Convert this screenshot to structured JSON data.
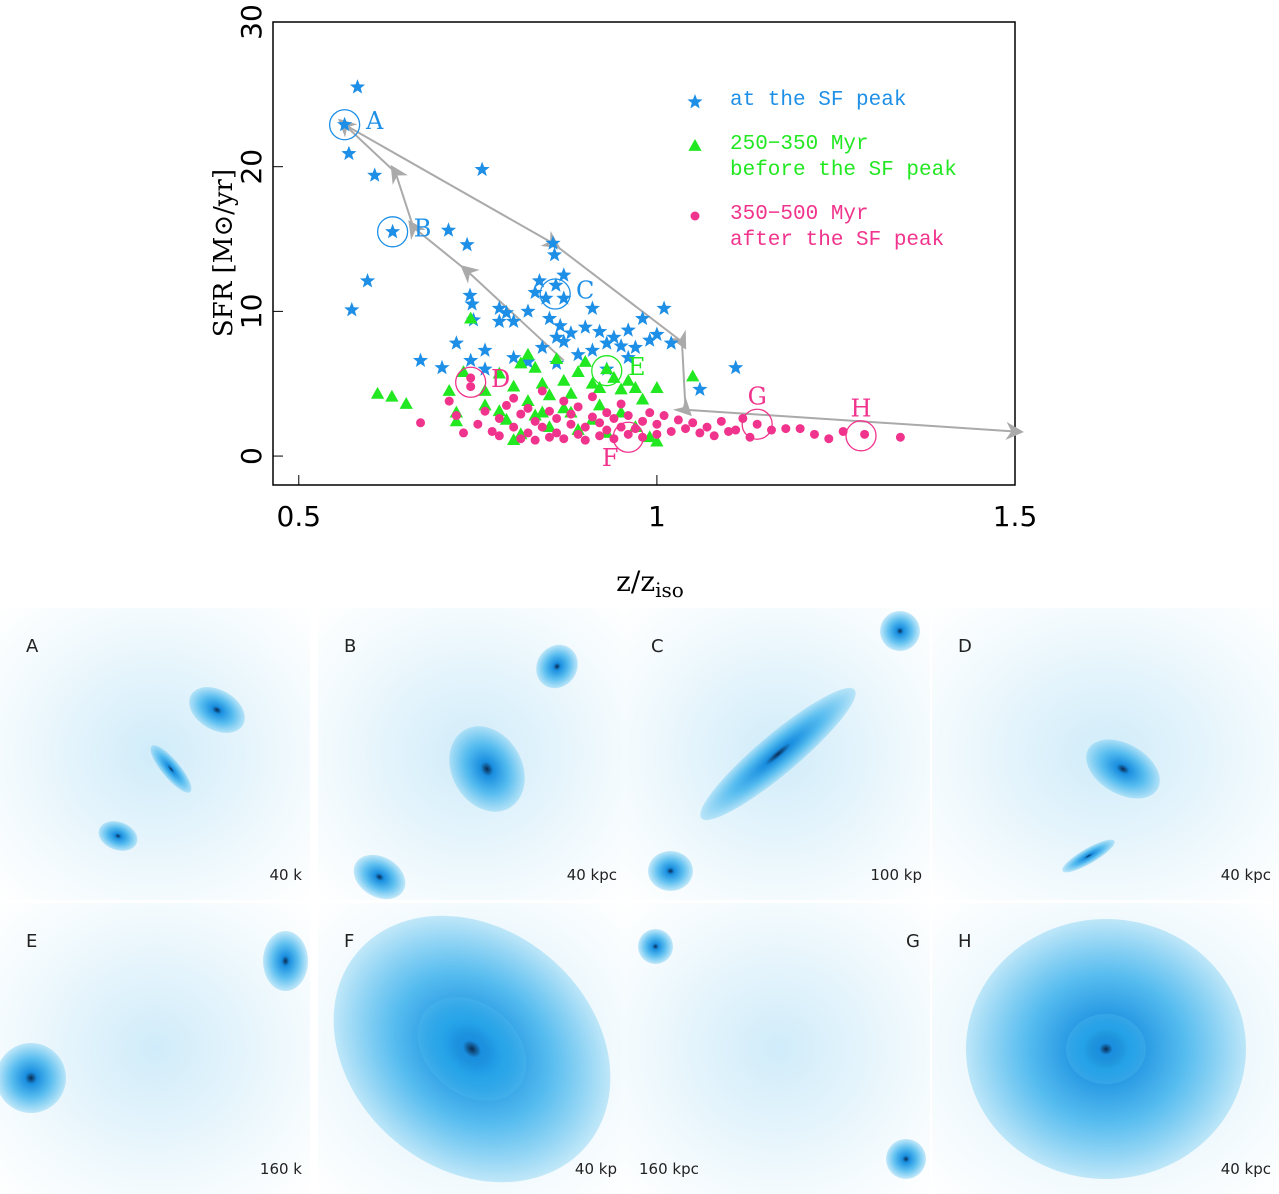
{
  "chart_data": {
    "type": "scatter",
    "xlabel": {
      "text": "z/z",
      "sub": "iso"
    },
    "ylabel": "SFR [M⊙/yr]",
    "xlim": [
      0.464,
      1.5
    ],
    "ylim": [
      -2,
      30
    ],
    "xticks": [
      0.5,
      1,
      1.5
    ],
    "yticks": [
      0,
      10,
      20,
      30
    ],
    "legend": "upper right",
    "series": [
      {
        "name": "at the SF peak",
        "color": "#1e8fe6",
        "marker": "star",
        "x": [
          0.582,
          0.564,
          0.57,
          0.606,
          0.756,
          0.631,
          0.709,
          0.735,
          0.855,
          0.857,
          0.596,
          0.574,
          0.739,
          0.742,
          0.744,
          0.859,
          0.836,
          0.845,
          0.87,
          0.91,
          0.82,
          0.79,
          0.8,
          0.78,
          0.85,
          0.865,
          0.88,
          0.9,
          0.92,
          0.94,
          0.96,
          0.98,
          1.01,
          0.99,
          0.97,
          0.95,
          0.93,
          0.91,
          0.89,
          0.87,
          0.86,
          0.84,
          0.82,
          0.8,
          0.76,
          0.72,
          0.7,
          0.67,
          0.74,
          0.76,
          0.86,
          0.93,
          0.96,
          1.06,
          1.11,
          1.02,
          1.0,
          0.78,
          0.83,
          0.87
        ],
        "values": [
          25.5,
          22.9,
          20.9,
          19.4,
          19.8,
          15.5,
          15.6,
          14.6,
          14.7,
          13.9,
          12.1,
          10.1,
          11.1,
          10.5,
          9.4,
          11.8,
          12.1,
          10.9,
          10.9,
          10.2,
          10.0,
          9.9,
          9.3,
          9.3,
          9.5,
          9.0,
          8.5,
          8.9,
          8.6,
          8.2,
          8.7,
          9.5,
          10.2,
          8.0,
          7.5,
          7.6,
          7.8,
          7.3,
          7.0,
          7.9,
          8.2,
          7.5,
          6.5,
          6.8,
          7.3,
          7.8,
          6.1,
          6.6,
          6.6,
          6.0,
          6.4,
          6.0,
          6.8,
          4.6,
          6.1,
          7.8,
          8.4,
          10.2,
          11.3,
          12.5
        ]
      },
      {
        "name": "250−350 Myr\n before the SF peak",
        "color": "#22e822",
        "marker": "triangle",
        "x": [
          0.61,
          0.63,
          0.65,
          0.71,
          0.72,
          0.72,
          0.73,
          0.74,
          0.76,
          0.78,
          0.78,
          0.8,
          0.81,
          0.82,
          0.83,
          0.84,
          0.85,
          0.86,
          0.87,
          0.88,
          0.89,
          0.9,
          0.91,
          0.92,
          0.93,
          0.94,
          0.95,
          0.96,
          0.97,
          0.98,
          1.0,
          1.05,
          0.79,
          0.81,
          0.83,
          0.85,
          0.87,
          0.89,
          0.91,
          0.93,
          0.95,
          0.97,
          0.99,
          1.0,
          0.8,
          0.76,
          0.82,
          0.84,
          0.88,
          0.92
        ],
        "values": [
          4.3,
          4.1,
          3.6,
          4.5,
          3.0,
          2.4,
          5.8,
          9.5,
          4.5,
          5.7,
          3.1,
          4.8,
          6.4,
          7.0,
          6.1,
          5.0,
          4.2,
          6.7,
          5.2,
          4.3,
          5.8,
          6.5,
          5.0,
          4.7,
          6.0,
          5.4,
          4.6,
          5.2,
          4.7,
          3.9,
          4.7,
          5.5,
          2.5,
          1.5,
          2.8,
          2.0,
          3.3,
          1.8,
          2.5,
          1.6,
          3.0,
          2.0,
          1.3,
          1.0,
          1.1,
          3.5,
          3.8,
          3.0,
          3.0,
          3.5
        ]
      },
      {
        "name": "350−500 Myr\n after the SF peak",
        "color": "#f0338c",
        "marker": "circle",
        "x": [
          0.67,
          0.71,
          0.72,
          0.73,
          0.74,
          0.74,
          0.75,
          0.76,
          0.77,
          0.78,
          0.78,
          0.79,
          0.8,
          0.8,
          0.81,
          0.81,
          0.82,
          0.82,
          0.83,
          0.83,
          0.84,
          0.84,
          0.85,
          0.85,
          0.86,
          0.86,
          0.87,
          0.87,
          0.88,
          0.88,
          0.89,
          0.89,
          0.9,
          0.9,
          0.91,
          0.91,
          0.92,
          0.92,
          0.93,
          0.93,
          0.94,
          0.94,
          0.95,
          0.95,
          0.96,
          0.96,
          0.97,
          0.98,
          0.98,
          0.99,
          1.0,
          1.0,
          1.01,
          1.02,
          1.03,
          1.04,
          1.05,
          1.06,
          1.07,
          1.08,
          1.09,
          1.1,
          1.11,
          1.12,
          1.13,
          1.14,
          1.16,
          1.18,
          1.2,
          1.22,
          1.24,
          1.26,
          1.29,
          1.34
        ],
        "values": [
          2.3,
          3.8,
          2.8,
          1.6,
          5.4,
          4.8,
          2.2,
          3.1,
          1.7,
          2.6,
          1.4,
          3.5,
          2.0,
          4.0,
          1.2,
          2.9,
          1.6,
          3.3,
          2.4,
          1.1,
          4.5,
          2.0,
          1.3,
          3.1,
          2.6,
          1.6,
          3.8,
          1.2,
          2.2,
          2.9,
          1.5,
          3.4,
          2.0,
          1.1,
          2.7,
          4.1,
          1.4,
          2.3,
          3.0,
          1.8,
          1.2,
          2.6,
          2.0,
          3.6,
          1.5,
          2.8,
          1.9,
          2.4,
          1.3,
          3.0,
          2.2,
          1.5,
          2.8,
          1.7,
          2.5,
          1.9,
          2.3,
          1.6,
          2.0,
          1.4,
          2.4,
          1.7,
          1.8,
          2.6,
          1.3,
          2.2,
          1.8,
          1.9,
          1.9,
          1.5,
          1.2,
          1.7,
          1.5,
          1.3
        ]
      }
    ],
    "tracks": [
      {
        "x": [
          0.564,
          0.855,
          1.035,
          1.04,
          1.5
        ],
        "y": [
          22.9,
          14.7,
          7.9,
          3.2,
          1.7
        ]
      },
      {
        "x": [
          0.87,
          0.735,
          0.66,
          0.635,
          0.564
        ],
        "y": [
          6.6,
          12.8,
          15.8,
          19.6,
          22.9
        ]
      }
    ],
    "annotations": [
      {
        "text": "A",
        "x": 0.564,
        "y": 22.9,
        "color": "#1e8fe6",
        "side": "right"
      },
      {
        "text": "B",
        "x": 0.631,
        "y": 15.5,
        "color": "#1e8fe6",
        "side": "right"
      },
      {
        "text": "C",
        "x": 0.858,
        "y": 11.2,
        "color": "#1e8fe6",
        "side": "right"
      },
      {
        "text": "D",
        "x": 0.74,
        "y": 5.1,
        "color": "#f0338c",
        "side": "right"
      },
      {
        "text": "E",
        "x": 0.93,
        "y": 5.9,
        "color": "#22e822",
        "side": "right"
      },
      {
        "text": "F",
        "x": 0.96,
        "y": 1.3,
        "color": "#f0338c",
        "side": "below"
      },
      {
        "text": "G",
        "x": 1.14,
        "y": 2.2,
        "color": "#f0338c",
        "side": "above"
      },
      {
        "text": "H",
        "x": 1.285,
        "y": 1.4,
        "color": "#f0338c",
        "side": "above"
      }
    ]
  },
  "panels": [
    {
      "label": "A",
      "scale": "40 k"
    },
    {
      "label": "B",
      "scale": "40 kpc"
    },
    {
      "label": "C",
      "scale": "100 kp"
    },
    {
      "label": "D",
      "scale": "40 kpc"
    },
    {
      "label": "E",
      "scale": "160 k"
    },
    {
      "label": "F",
      "scale": "40 kp"
    },
    {
      "label": "G",
      "scale": "160 kpc"
    },
    {
      "label": "H",
      "scale": "40 kpc"
    }
  ]
}
